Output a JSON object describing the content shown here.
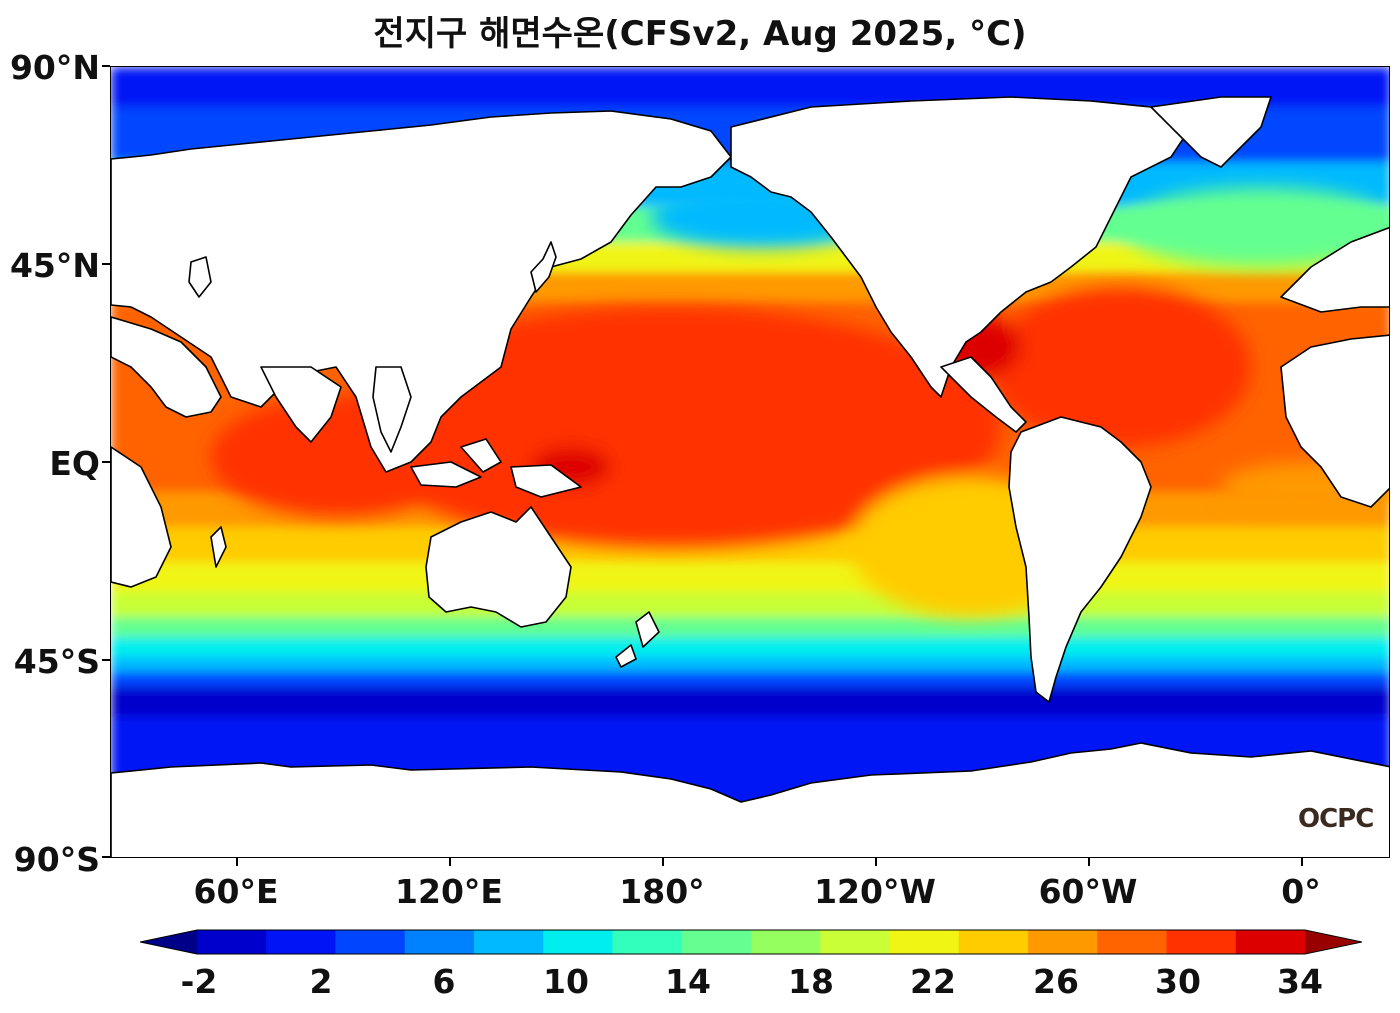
{
  "title": "전지구 해면수온(CFSv2, Aug 2025, °C)",
  "lat_labels": [
    "90°N",
    "45°N",
    "EQ",
    "45°S",
    "90°S"
  ],
  "lon_labels": [
    "60°E",
    "120°E",
    "180°",
    "120°W",
    "60°W",
    "0°"
  ],
  "colorbar": {
    "tick_labels": [
      "-2",
      "2",
      "6",
      "10",
      "14",
      "18",
      "22",
      "26",
      "30",
      "34"
    ],
    "levels": [
      -2,
      0,
      2,
      4,
      6,
      8,
      10,
      12,
      14,
      16,
      18,
      20,
      22,
      24,
      26,
      28,
      30,
      32,
      34
    ],
    "colors": [
      "#000088",
      "#0000cc",
      "#0014f5",
      "#0046ff",
      "#0082ff",
      "#00b9ff",
      "#00eeee",
      "#32ffbb",
      "#64ff90",
      "#96ff60",
      "#c8ff36",
      "#f0f514",
      "#ffcc00",
      "#ff9900",
      "#ff6400",
      "#ff3200",
      "#dd0000",
      "#990000"
    ],
    "extend": "both"
  },
  "logo": "OCPC",
  "colors": {
    "land": "#ffffff",
    "coastline": "#000000"
  }
}
